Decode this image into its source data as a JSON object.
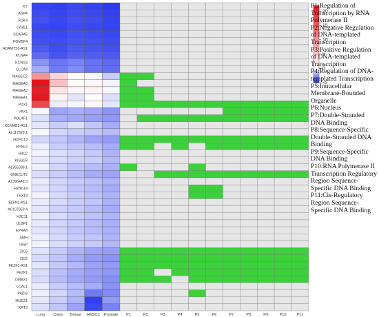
{
  "chart_data": {
    "type": "heatmap",
    "rows": [
      "KY",
      "ASPA",
      "PDK4",
      "LYVE1",
      "SCARA5",
      "PGM5P4",
      "ADAMTS9-AS1",
      "KCNA4",
      "KCNG3",
      "CLCA4",
      "MAGEC2",
      "MAGEA6",
      "MAGEA3",
      "MAGEA1",
      "PDX1",
      "VAX1",
      "POU4F1",
      "KCNMB2-AS1",
      "AL117329.1",
      "HOXC13",
      "MYBL2",
      "H3C2",
      "KISS1R",
      "AL355338.1",
      "GNECUT2",
      "AL596442.3",
      "H2BC14",
      "TEX19",
      "ELFN1-AS1",
      "AC107959.4",
      "H3C11",
      "ULBP1",
      "EPHA8",
      "AMH",
      "IBSP",
      "ZIC5",
      "ZIC2",
      "FEZF1-AS1",
      "FEZF1",
      "DMBX1",
      "LCAL1",
      "PADI3",
      "MUC21",
      "KRT3"
    ],
    "expression_columns": [
      "Lung",
      "Colon",
      "Breast",
      "HNSCC",
      "Prostate"
    ],
    "pathway_columns": [
      "P1",
      "P2",
      "P3",
      "P4",
      "P5",
      "P6",
      "P7",
      "P8",
      "P9",
      "P10",
      "P11"
    ],
    "expression_values": [
      [
        -4.5,
        -4.6,
        -4.4,
        -4.5,
        -4.7
      ],
      [
        -4.3,
        -4.5,
        -4.3,
        -4.4,
        -4.6
      ],
      [
        -4.2,
        -4.4,
        -4.2,
        -4.3,
        -4.5
      ],
      [
        -4.4,
        -4.5,
        -4.3,
        -4.4,
        -4.5
      ],
      [
        -4.3,
        -4.4,
        -4.2,
        -4.3,
        -4.4
      ],
      [
        -4.2,
        -4.3,
        -4.1,
        -4.2,
        -4.3
      ],
      [
        -4.0,
        -4.3,
        -4.0,
        -4.1,
        -4.2
      ],
      [
        -3.6,
        -4.1,
        -3.8,
        -3.9,
        -4.0
      ],
      [
        -2.6,
        -3.3,
        -3.0,
        -3.4,
        -3.6
      ],
      [
        -2.0,
        -3.2,
        -2.8,
        -3.4,
        -3.5
      ],
      [
        10.0,
        4.0,
        0.5,
        -0.2,
        -1.2
      ],
      [
        22.0,
        6.0,
        0.5,
        0.8,
        -0.3
      ],
      [
        21.0,
        2.5,
        0.8,
        1.0,
        -0.2
      ],
      [
        21.5,
        1.0,
        -0.6,
        0.4,
        -0.8
      ],
      [
        17.0,
        -0.4,
        -0.2,
        0.8,
        -0.6
      ],
      [
        -0.2,
        -2.2,
        -2.0,
        -2.2,
        -2.6
      ],
      [
        -0.8,
        -2.0,
        -2.1,
        -2.3,
        -2.5
      ],
      [
        -0.6,
        -1.2,
        -0.8,
        -1.4,
        -2.0
      ],
      [
        -0.2,
        -1.0,
        -1.2,
        -1.4,
        -1.6
      ],
      [
        -1.0,
        -1.4,
        -1.8,
        -2.2,
        -2.4
      ],
      [
        -0.4,
        -1.2,
        -1.4,
        -1.6,
        -2.0
      ],
      [
        -0.3,
        -0.8,
        -1.0,
        -1.3,
        -1.8
      ],
      [
        -0.5,
        -0.9,
        -1.1,
        -1.2,
        -1.7
      ],
      [
        -0.4,
        -1.0,
        -1.4,
        -1.6,
        -1.9
      ],
      [
        -0.8,
        -1.2,
        -1.6,
        -2.0,
        -2.2
      ],
      [
        -0.5,
        -1.0,
        -1.3,
        -1.5,
        -1.8
      ],
      [
        -0.6,
        -1.0,
        -1.4,
        -1.6,
        -2.0
      ],
      [
        -0.3,
        -0.9,
        -1.2,
        -1.5,
        -1.8
      ],
      [
        -0.5,
        -0.9,
        -1.2,
        -1.4,
        -1.9
      ],
      [
        -0.6,
        -1.1,
        -1.3,
        -1.6,
        -2.0
      ],
      [
        -0.4,
        -0.9,
        -1.2,
        -1.5,
        -1.8
      ],
      [
        -0.5,
        -1.0,
        -1.3,
        -1.6,
        -1.9
      ],
      [
        -0.6,
        -1.0,
        -1.4,
        -1.6,
        -1.9
      ],
      [
        -0.4,
        -0.9,
        -1.2,
        -1.4,
        -1.8
      ],
      [
        -0.3,
        -0.8,
        -1.1,
        -1.3,
        -1.7
      ],
      [
        -0.7,
        -1.3,
        -1.8,
        -2.2,
        -2.3
      ],
      [
        -0.9,
        -1.4,
        -2.0,
        -2.4,
        -2.6
      ],
      [
        -0.6,
        -1.3,
        -1.7,
        -2.2,
        -2.4
      ],
      [
        -0.8,
        -1.5,
        -2.0,
        -2.3,
        -2.5
      ],
      [
        -0.9,
        -1.6,
        -2.1,
        -2.4,
        -2.7
      ],
      [
        -0.5,
        -1.2,
        -1.6,
        -2.0,
        -2.6
      ],
      [
        -0.4,
        -1.0,
        -1.6,
        -3.2,
        -2.8
      ],
      [
        -0.6,
        -1.2,
        -1.8,
        -4.6,
        -2.4
      ],
      [
        -0.8,
        -1.4,
        -2.2,
        -4.4,
        -3.0
      ]
    ],
    "pathway_membership": [
      [
        0,
        0,
        0,
        0,
        0,
        0,
        0,
        0,
        0,
        0,
        0
      ],
      [
        0,
        0,
        0,
        0,
        0,
        0,
        0,
        0,
        0,
        0,
        0
      ],
      [
        0,
        0,
        0,
        0,
        0,
        0,
        0,
        0,
        0,
        0,
        0
      ],
      [
        0,
        0,
        0,
        0,
        0,
        0,
        0,
        0,
        0,
        0,
        0
      ],
      [
        0,
        0,
        0,
        0,
        0,
        0,
        0,
        0,
        0,
        0,
        0
      ],
      [
        0,
        0,
        0,
        0,
        0,
        0,
        0,
        0,
        0,
        0,
        0
      ],
      [
        0,
        0,
        0,
        0,
        0,
        0,
        0,
        0,
        0,
        0,
        0
      ],
      [
        0,
        0,
        0,
        0,
        0,
        0,
        0,
        0,
        0,
        0,
        0
      ],
      [
        0,
        0,
        0,
        0,
        0,
        0,
        0,
        0,
        0,
        0,
        0
      ],
      [
        0,
        0,
        0,
        0,
        0,
        0,
        0,
        0,
        0,
        0,
        0
      ],
      [
        1,
        1,
        0,
        0,
        0,
        0,
        0,
        0,
        0,
        0,
        0
      ],
      [
        1,
        0,
        0,
        0,
        0,
        0,
        0,
        0,
        0,
        0,
        0
      ],
      [
        1,
        1,
        0,
        0,
        0,
        0,
        0,
        0,
        0,
        0,
        0
      ],
      [
        1,
        1,
        0,
        0,
        0,
        0,
        0,
        0,
        0,
        0,
        0
      ],
      [
        1,
        1,
        1,
        1,
        1,
        1,
        1,
        1,
        1,
        1,
        1
      ],
      [
        0,
        0,
        0,
        0,
        0,
        0,
        1,
        1,
        1,
        1,
        1
      ],
      [
        0,
        1,
        1,
        1,
        1,
        1,
        1,
        1,
        1,
        1,
        1
      ],
      [
        0,
        0,
        0,
        0,
        0,
        0,
        0,
        0,
        0,
        0,
        0
      ],
      [
        0,
        0,
        0,
        0,
        0,
        0,
        0,
        0,
        0,
        0,
        0
      ],
      [
        1,
        1,
        1,
        1,
        1,
        1,
        1,
        1,
        1,
        1,
        1
      ],
      [
        1,
        1,
        0,
        1,
        0,
        1,
        1,
        1,
        1,
        1,
        1
      ],
      [
        0,
        0,
        0,
        0,
        0,
        0,
        0,
        0,
        0,
        0,
        0
      ],
      [
        0,
        0,
        0,
        0,
        0,
        0,
        0,
        0,
        0,
        0,
        0
      ],
      [
        1,
        0,
        0,
        0,
        1,
        0,
        0,
        0,
        0,
        0,
        0
      ],
      [
        0,
        0,
        1,
        1,
        1,
        1,
        1,
        1,
        1,
        1,
        1
      ],
      [
        0,
        0,
        0,
        0,
        0,
        0,
        0,
        0,
        0,
        0,
        0
      ],
      [
        0,
        0,
        0,
        0,
        1,
        1,
        0,
        0,
        0,
        0,
        0
      ],
      [
        0,
        0,
        0,
        0,
        1,
        1,
        0,
        0,
        0,
        0,
        0
      ],
      [
        0,
        0,
        0,
        0,
        0,
        0,
        0,
        0,
        0,
        0,
        0
      ],
      [
        0,
        0,
        0,
        0,
        0,
        0,
        0,
        0,
        0,
        0,
        0
      ],
      [
        0,
        0,
        0,
        0,
        0,
        0,
        0,
        0,
        0,
        0,
        0
      ],
      [
        0,
        0,
        0,
        0,
        0,
        0,
        0,
        0,
        0,
        0,
        0
      ],
      [
        0,
        0,
        0,
        0,
        0,
        0,
        0,
        0,
        0,
        0,
        0
      ],
      [
        0,
        0,
        0,
        0,
        0,
        0,
        0,
        0,
        0,
        0,
        0
      ],
      [
        0,
        0,
        0,
        0,
        0,
        0,
        0,
        0,
        0,
        0,
        0
      ],
      [
        1,
        1,
        1,
        1,
        1,
        1,
        1,
        1,
        1,
        1,
        1
      ],
      [
        1,
        1,
        1,
        1,
        1,
        1,
        1,
        1,
        1,
        1,
        1
      ],
      [
        1,
        1,
        1,
        1,
        1,
        1,
        1,
        1,
        1,
        1,
        1
      ],
      [
        1,
        1,
        0,
        1,
        1,
        1,
        1,
        1,
        1,
        1,
        1
      ],
      [
        1,
        1,
        1,
        0,
        1,
        1,
        1,
        1,
        1,
        1,
        1
      ],
      [
        0,
        0,
        0,
        0,
        0,
        0,
        0,
        0,
        0,
        0,
        0
      ],
      [
        0,
        0,
        0,
        0,
        1,
        0,
        0,
        0,
        0,
        0,
        0
      ],
      [
        0,
        0,
        0,
        0,
        0,
        0,
        0,
        0,
        0,
        0,
        0
      ],
      [
        0,
        0,
        0,
        0,
        0,
        0,
        0,
        0,
        0,
        0,
        0
      ]
    ],
    "color_scale": {
      "min": -5,
      "max": 22,
      "ticks": [
        20,
        15,
        10,
        5,
        0,
        -5
      ],
      "low_color": "#1f2ff0",
      "mid_color": "#ffffff",
      "high_color": "#e3141b",
      "member_color": "#3bd13b",
      "nonmember_color": "#e6e6e6"
    },
    "legend": [
      "P1:Regulation of Transcription by RNA Polymerase II",
      "P2:Negative Regulation of DNA-templated Transcription",
      "P3:Positive Regulation of DNA-templated Transcription",
      "P4:Regulation of DNA-templated Transcription",
      "P5:Intracellular Membrane-Bounded Organelle",
      "P6:Nucleus",
      "P7:Double-Stranded DNA Binding",
      "P8:Sequence-Specific Double-Stranded DNA Binding",
      "P9:Sequence-Specific DNA Binding",
      "P10:RNA Polymerase II Transcription Regulatory Region Sequence-Specific DNA Binding",
      "P11:Cis-Regulatory Region Sequence-Specific DNA Binding"
    ]
  }
}
